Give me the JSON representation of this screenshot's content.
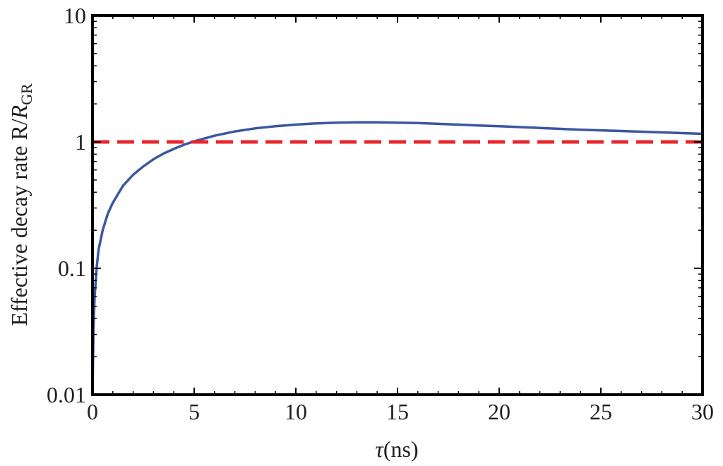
{
  "chart_data": {
    "type": "line",
    "title": "",
    "xlabel_parts": {
      "symbol": "τ",
      "unit": "(ns)"
    },
    "ylabel_parts": {
      "main": "Effective decay rate R/",
      "ratio_symbol": "R",
      "ratio_sub": "GR"
    },
    "xlim": [
      0,
      30
    ],
    "ylim": [
      0.01,
      10
    ],
    "yscale": "log",
    "grid": false,
    "legend": "none",
    "x_ticks": [
      0,
      5,
      10,
      15,
      20,
      25,
      30
    ],
    "x_tick_labels": [
      "0",
      "5",
      "10",
      "15",
      "20",
      "25",
      "30"
    ],
    "y_ticks": [
      0.01,
      0.1,
      1,
      10
    ],
    "y_tick_labels": [
      "0.01",
      "0.1",
      "1",
      "10"
    ],
    "series": [
      {
        "style": "solid",
        "color": "#3a57a0",
        "x": [
          0,
          0.05,
          0.1,
          0.2,
          0.3,
          0.5,
          0.75,
          1,
          1.5,
          2,
          2.5,
          3,
          3.5,
          4,
          4.5,
          5,
          6,
          7,
          8,
          9,
          10,
          11,
          12,
          13,
          14,
          15,
          16,
          17,
          18,
          19,
          20,
          22,
          24,
          26,
          28,
          30
        ],
        "y": [
          0.01,
          0.033,
          0.058,
          0.1,
          0.14,
          0.2,
          0.27,
          0.33,
          0.45,
          0.55,
          0.64,
          0.73,
          0.81,
          0.88,
          0.95,
          1.01,
          1.12,
          1.21,
          1.28,
          1.33,
          1.37,
          1.4,
          1.42,
          1.43,
          1.43,
          1.42,
          1.41,
          1.39,
          1.37,
          1.35,
          1.33,
          1.29,
          1.25,
          1.22,
          1.19,
          1.16
        ]
      },
      {
        "style": "dashed",
        "color": "#e8262b",
        "x": [
          0,
          30
        ],
        "y": [
          1,
          1
        ]
      }
    ]
  }
}
